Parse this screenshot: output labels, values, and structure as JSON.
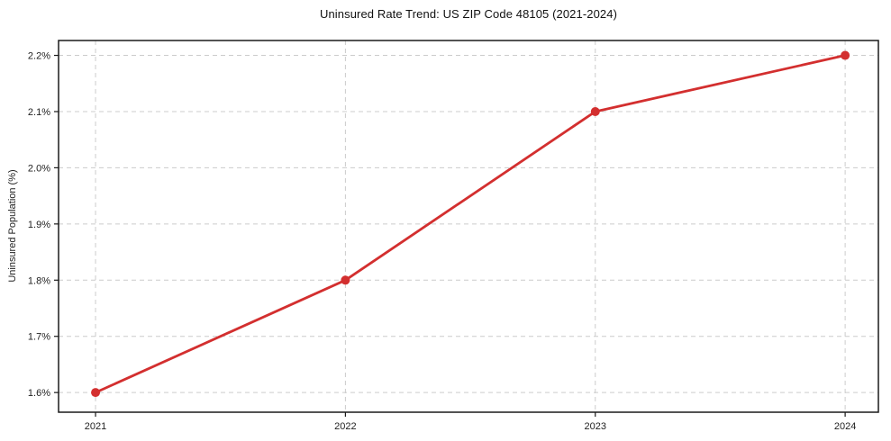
{
  "page": {
    "background": "#ffffff"
  },
  "chart_data": {
    "type": "line",
    "title": "Uninsured Rate Trend: US ZIP Code 48105 (2021-2024)",
    "xlabel": "",
    "ylabel": "Uninsured Population (%)",
    "x": [
      2021,
      2022,
      2023,
      2024
    ],
    "values": [
      1.6,
      1.8,
      2.1,
      2.2
    ],
    "x_tick_labels": [
      "2021",
      "2022",
      "2023",
      "2024"
    ],
    "y_ticks": [
      1.6,
      1.7,
      1.8,
      1.9,
      2.0,
      2.1,
      2.2
    ],
    "y_tick_labels": [
      "1.6%",
      "1.7%",
      "1.8%",
      "1.9%",
      "2.0%",
      "2.1%",
      "2.2%"
    ],
    "xlim": [
      2020.852,
      2024.133
    ],
    "ylim": [
      1.565,
      2.2265
    ],
    "grid": true,
    "legend": "none",
    "line_color": "#d32f2f",
    "marker": "circle",
    "marker_color": "#d32f2f",
    "grid_color": "#cccccc",
    "axis_color": "#1a1a1a",
    "tick_text_color": "#222222"
  }
}
